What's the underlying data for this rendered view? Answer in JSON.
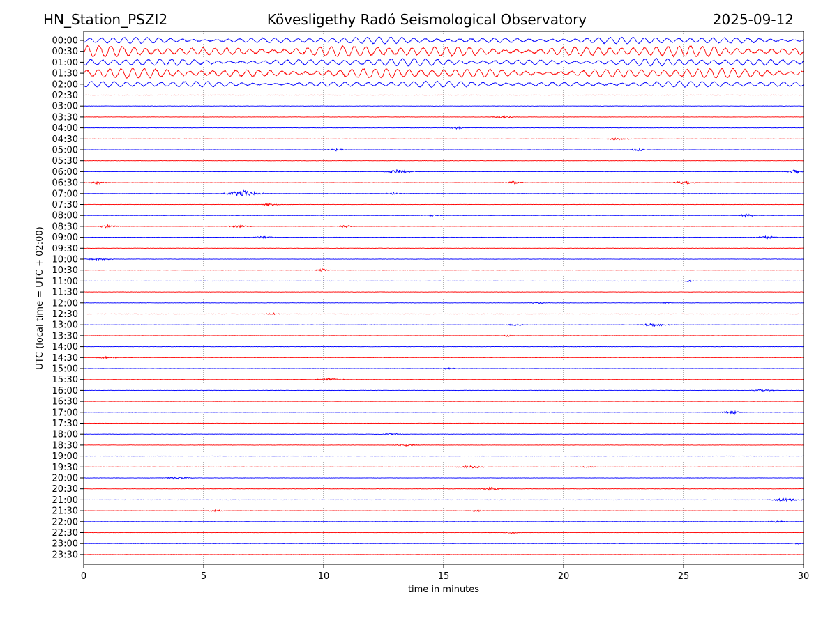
{
  "header": {
    "station": "HN_Station_PSZI2",
    "observatory": "Kövesligethy Radó Seismological Observatory",
    "date": "2025-09-12"
  },
  "colors": {
    "even_row": "#0000ff",
    "odd_row": "#ff0000",
    "grid": "#000000"
  },
  "chart_data": {
    "type": "line",
    "subtype": "helicorder",
    "xlabel": "time in minutes",
    "ylabel": "UTC (local time = UTC + 02:00)",
    "xlim": [
      0,
      30
    ],
    "x_ticks": [
      0,
      5,
      10,
      15,
      20,
      25,
      30
    ],
    "grid": "vertical dotted lines at x ticks",
    "row_labels": [
      "00:00",
      "00:30",
      "01:00",
      "01:30",
      "02:00",
      "02:30",
      "03:00",
      "03:30",
      "04:00",
      "04:30",
      "05:00",
      "05:30",
      "06:00",
      "06:30",
      "07:00",
      "07:30",
      "08:00",
      "08:30",
      "09:00",
      "09:30",
      "10:00",
      "10:30",
      "11:00",
      "11:30",
      "12:00",
      "12:30",
      "13:00",
      "13:30",
      "14:00",
      "14:30",
      "15:00",
      "15:30",
      "16:00",
      "16:30",
      "17:00",
      "17:30",
      "18:00",
      "18:30",
      "19:00",
      "19:30",
      "20:00",
      "20:30",
      "21:00",
      "21:30",
      "22:00",
      "22:30",
      "23:00",
      "23:30"
    ],
    "row_colors": "alternating blue (even rows) and red (odd rows)",
    "high_amplitude_rows": [
      {
        "row": "00:00",
        "relative_amplitude": 0.55
      },
      {
        "row": "00:30",
        "relative_amplitude": 0.9
      },
      {
        "row": "01:00",
        "relative_amplitude": 0.6
      },
      {
        "row": "01:30",
        "relative_amplitude": 0.8
      },
      {
        "row": "02:00",
        "relative_amplitude": 0.5
      }
    ],
    "bursts": [
      {
        "row": "03:30",
        "start_min": 17.0,
        "end_min": 18.0,
        "amplitude": 0.25
      },
      {
        "row": "04:00",
        "start_min": 15.2,
        "end_min": 16.0,
        "amplitude": 0.2
      },
      {
        "row": "04:30",
        "start_min": 21.5,
        "end_min": 23.0,
        "amplitude": 0.15
      },
      {
        "row": "05:00",
        "start_min": 10.0,
        "end_min": 11.0,
        "amplitude": 0.2
      },
      {
        "row": "05:00",
        "start_min": 22.7,
        "end_min": 23.5,
        "amplitude": 0.25
      },
      {
        "row": "06:00",
        "start_min": 12.5,
        "end_min": 13.8,
        "amplitude": 0.35
      },
      {
        "row": "06:00",
        "start_min": 29.3,
        "end_min": 30.0,
        "amplitude": 0.35
      },
      {
        "row": "06:30",
        "start_min": 0.0,
        "end_min": 1.2,
        "amplitude": 0.2
      },
      {
        "row": "06:30",
        "start_min": 17.5,
        "end_min": 18.3,
        "amplitude": 0.25
      },
      {
        "row": "06:30",
        "start_min": 24.5,
        "end_min": 25.5,
        "amplitude": 0.35
      },
      {
        "row": "07:00",
        "start_min": 5.8,
        "end_min": 7.5,
        "amplitude": 0.55
      },
      {
        "row": "07:00",
        "start_min": 12.5,
        "end_min": 13.3,
        "amplitude": 0.2
      },
      {
        "row": "07:30",
        "start_min": 7.4,
        "end_min": 8.2,
        "amplitude": 0.25
      },
      {
        "row": "08:00",
        "start_min": 14.0,
        "end_min": 15.0,
        "amplitude": 0.15
      },
      {
        "row": "08:00",
        "start_min": 27.3,
        "end_min": 28.0,
        "amplitude": 0.3
      },
      {
        "row": "08:30",
        "start_min": 0.5,
        "end_min": 1.5,
        "amplitude": 0.25
      },
      {
        "row": "08:30",
        "start_min": 6.0,
        "end_min": 7.0,
        "amplitude": 0.3
      },
      {
        "row": "08:30",
        "start_min": 10.5,
        "end_min": 11.3,
        "amplitude": 0.2
      },
      {
        "row": "09:00",
        "start_min": 7.0,
        "end_min": 8.0,
        "amplitude": 0.2
      },
      {
        "row": "09:00",
        "start_min": 28.0,
        "end_min": 29.0,
        "amplitude": 0.25
      },
      {
        "row": "10:00",
        "start_min": 0.0,
        "end_min": 1.3,
        "amplitude": 0.2
      },
      {
        "row": "10:30",
        "start_min": 9.6,
        "end_min": 10.3,
        "amplitude": 0.25
      },
      {
        "row": "11:00",
        "start_min": 25.0,
        "end_min": 25.5,
        "amplitude": 0.15
      },
      {
        "row": "12:00",
        "start_min": 18.5,
        "end_min": 19.3,
        "amplitude": 0.15
      },
      {
        "row": "12:00",
        "start_min": 24.0,
        "end_min": 24.6,
        "amplitude": 0.15
      },
      {
        "row": "12:30",
        "start_min": 7.5,
        "end_min": 8.2,
        "amplitude": 0.2
      },
      {
        "row": "13:00",
        "start_min": 17.5,
        "end_min": 18.5,
        "amplitude": 0.2
      },
      {
        "row": "13:00",
        "start_min": 23.0,
        "end_min": 24.5,
        "amplitude": 0.25
      },
      {
        "row": "13:30",
        "start_min": 17.5,
        "end_min": 17.9,
        "amplitude": 0.2
      },
      {
        "row": "14:30",
        "start_min": 0.5,
        "end_min": 1.5,
        "amplitude": 0.2
      },
      {
        "row": "15:00",
        "start_min": 14.5,
        "end_min": 16.0,
        "amplitude": 0.12
      },
      {
        "row": "15:30",
        "start_min": 9.5,
        "end_min": 11.0,
        "amplitude": 0.18
      },
      {
        "row": "16:00",
        "start_min": 27.8,
        "end_min": 28.8,
        "amplitude": 0.18
      },
      {
        "row": "17:00",
        "start_min": 26.5,
        "end_min": 27.5,
        "amplitude": 0.25
      },
      {
        "row": "18:00",
        "start_min": 12.0,
        "end_min": 13.5,
        "amplitude": 0.12
      },
      {
        "row": "18:30",
        "start_min": 12.8,
        "end_min": 14.0,
        "amplitude": 0.18
      },
      {
        "row": "19:30",
        "start_min": 15.5,
        "end_min": 16.7,
        "amplitude": 0.25
      },
      {
        "row": "19:30",
        "start_min": 20.5,
        "end_min": 21.5,
        "amplitude": 0.12
      },
      {
        "row": "20:00",
        "start_min": 3.2,
        "end_min": 4.6,
        "amplitude": 0.25
      },
      {
        "row": "20:30",
        "start_min": 16.5,
        "end_min": 17.5,
        "amplitude": 0.25
      },
      {
        "row": "21:00",
        "start_min": 28.5,
        "end_min": 30.0,
        "amplitude": 0.25
      },
      {
        "row": "21:30",
        "start_min": 5.0,
        "end_min": 6.0,
        "amplitude": 0.15
      },
      {
        "row": "21:30",
        "start_min": 16.0,
        "end_min": 16.8,
        "amplitude": 0.15
      },
      {
        "row": "22:00",
        "start_min": 28.5,
        "end_min": 29.3,
        "amplitude": 0.2
      },
      {
        "row": "22:30",
        "start_min": 17.5,
        "end_min": 18.2,
        "amplitude": 0.18
      },
      {
        "row": "23:00",
        "start_min": 29.5,
        "end_min": 30.0,
        "amplitude": 0.15
      }
    ]
  }
}
